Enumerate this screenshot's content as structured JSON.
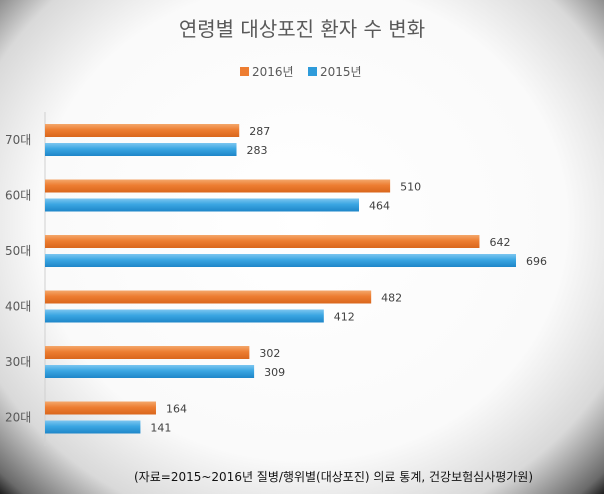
{
  "colors": {
    "series_2016": "#ED7D31",
    "series_2015": "#2E9BDA"
  },
  "source_note": "(자료=2015~2016년 질병/행위별(대상포진) 의료 통계, 건강보험심사평가원)",
  "chart_data": {
    "type": "bar",
    "orientation": "horizontal",
    "title": "연령별 대상포진 환자 수 변화",
    "categories": [
      "70대",
      "60대",
      "50대",
      "40대",
      "30대",
      "20대"
    ],
    "series": [
      {
        "name": "2016년",
        "values": [
          287,
          510,
          642,
          482,
          302,
          164
        ]
      },
      {
        "name": "2015년",
        "values": [
          283,
          464,
          696,
          412,
          309,
          141
        ]
      }
    ],
    "xlim": [
      0,
      750
    ],
    "grid": false,
    "legend": "top-center",
    "data_labels": true
  }
}
